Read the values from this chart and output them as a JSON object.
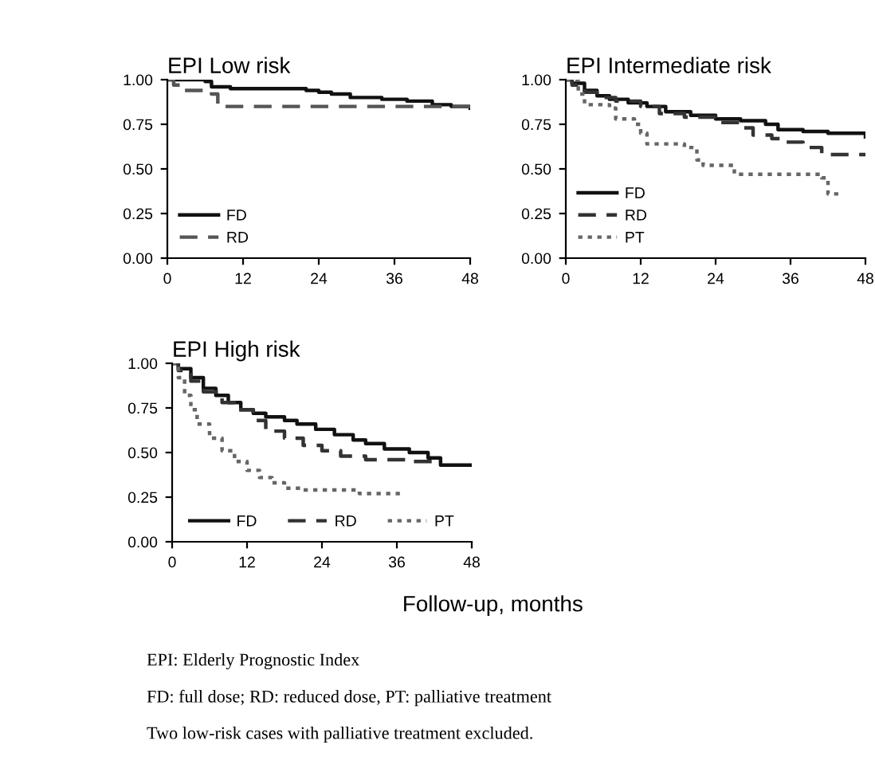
{
  "chart_data": [
    {
      "type": "step",
      "title": "EPI Low risk",
      "xlim": [
        0,
        48
      ],
      "xticks": [
        0,
        12,
        24,
        36,
        48
      ],
      "ylim": [
        0,
        1
      ],
      "yticks": [
        {
          "value": 0,
          "label": "0.00"
        },
        {
          "value": 0.25,
          "label": "0.25"
        },
        {
          "value": 0.5,
          "label": "0.50"
        },
        {
          "value": 0.75,
          "label": "0.75"
        },
        {
          "value": 1,
          "label": "1.00"
        }
      ],
      "legend": "bottom left",
      "grid": false,
      "series": [
        {
          "name": "FD",
          "color": "#111111",
          "line_style": "solid",
          "x": [
            0,
            6,
            7,
            10,
            18,
            22,
            24,
            26,
            29,
            34,
            38,
            42,
            45,
            48
          ],
          "values": [
            1.0,
            0.99,
            0.96,
            0.95,
            0.95,
            0.94,
            0.93,
            0.92,
            0.9,
            0.89,
            0.88,
            0.86,
            0.85,
            0.84
          ]
        },
        {
          "name": "RD",
          "color": "#555555",
          "line_style": "dashed",
          "x": [
            0,
            1,
            2,
            7,
            8,
            48
          ],
          "values": [
            1.0,
            0.97,
            0.94,
            0.92,
            0.85,
            0.85
          ]
        }
      ]
    },
    {
      "type": "step",
      "title": "EPI Intermediate risk",
      "xlim": [
        0,
        48
      ],
      "xticks": [
        0,
        12,
        24,
        36,
        48
      ],
      "ylim": [
        0,
        1
      ],
      "yticks": [
        {
          "value": 0,
          "label": "0.00"
        },
        {
          "value": 0.25,
          "label": "0.25"
        },
        {
          "value": 0.5,
          "label": "0.50"
        },
        {
          "value": 0.75,
          "label": "0.75"
        },
        {
          "value": 1,
          "label": "1.00"
        }
      ],
      "legend": "bottom left",
      "grid": false,
      "series": [
        {
          "name": "FD",
          "color": "#111111",
          "line_style": "solid",
          "x": [
            0,
            1,
            3,
            5,
            7,
            10,
            13,
            16,
            20,
            24,
            28,
            32,
            34,
            38,
            42,
            47,
            48
          ],
          "values": [
            1.0,
            0.98,
            0.94,
            0.91,
            0.89,
            0.87,
            0.85,
            0.82,
            0.8,
            0.78,
            0.77,
            0.75,
            0.72,
            0.71,
            0.7,
            0.7,
            0.68
          ]
        },
        {
          "name": "RD",
          "color": "#333333",
          "line_style": "dashed",
          "x": [
            0,
            1,
            3,
            5,
            8,
            12,
            15,
            19,
            24,
            28,
            30,
            33,
            35,
            38,
            41,
            48
          ],
          "values": [
            1.0,
            0.97,
            0.93,
            0.9,
            0.88,
            0.85,
            0.81,
            0.79,
            0.76,
            0.73,
            0.69,
            0.67,
            0.65,
            0.62,
            0.58,
            0.58
          ]
        },
        {
          "name": "PT",
          "color": "#666666",
          "line_style": "dotted",
          "x": [
            0,
            2,
            3,
            7,
            8,
            11,
            12,
            13,
            19,
            21,
            22,
            27,
            41,
            42,
            44
          ],
          "values": [
            1.0,
            0.92,
            0.86,
            0.84,
            0.78,
            0.75,
            0.7,
            0.64,
            0.62,
            0.55,
            0.52,
            0.47,
            0.45,
            0.36,
            0.36
          ]
        }
      ]
    },
    {
      "type": "step",
      "title": "EPI High risk",
      "xlabel": "Follow-up, months",
      "xlim": [
        0,
        48
      ],
      "xticks": [
        0,
        12,
        24,
        36,
        48
      ],
      "ylim": [
        0,
        1
      ],
      "yticks": [
        {
          "value": 0,
          "label": "0.00"
        },
        {
          "value": 0.25,
          "label": "0.25"
        },
        {
          "value": 0.5,
          "label": "0.50"
        },
        {
          "value": 0.75,
          "label": "0.75"
        },
        {
          "value": 1,
          "label": "1.00"
        }
      ],
      "legend": "bottom",
      "grid": false,
      "annotations": [
        "EPI: Elderly Prognostic Index",
        "FD: full dose; RD: reduced dose, PT: palliative treatment",
        "Two low-risk cases with palliative treatment excluded."
      ],
      "series": [
        {
          "name": "FD",
          "color": "#111111",
          "line_style": "solid",
          "x": [
            0,
            1,
            3,
            5,
            7,
            9,
            11,
            13,
            15,
            18,
            20,
            23,
            26,
            29,
            31,
            34,
            38,
            41,
            43,
            48
          ],
          "values": [
            1.0,
            0.97,
            0.92,
            0.86,
            0.82,
            0.78,
            0.74,
            0.72,
            0.7,
            0.68,
            0.66,
            0.63,
            0.6,
            0.57,
            0.55,
            0.52,
            0.5,
            0.47,
            0.43,
            0.43
          ]
        },
        {
          "name": "RD",
          "color": "#333333",
          "line_style": "dashed",
          "x": [
            0,
            1,
            3,
            5,
            8,
            10,
            13,
            15,
            18,
            21,
            24,
            27,
            31,
            38,
            42
          ],
          "values": [
            1.0,
            0.96,
            0.9,
            0.84,
            0.78,
            0.74,
            0.68,
            0.62,
            0.58,
            0.54,
            0.51,
            0.48,
            0.46,
            0.45,
            0.45
          ]
        },
        {
          "name": "PT",
          "color": "#666666",
          "line_style": "dotted",
          "x": [
            0,
            1,
            2,
            3,
            4,
            6,
            8,
            10,
            12,
            14,
            16,
            18,
            21,
            30,
            37
          ],
          "values": [
            1.0,
            0.92,
            0.82,
            0.74,
            0.66,
            0.58,
            0.51,
            0.45,
            0.4,
            0.36,
            0.33,
            0.3,
            0.29,
            0.27,
            0.27
          ]
        }
      ]
    }
  ]
}
